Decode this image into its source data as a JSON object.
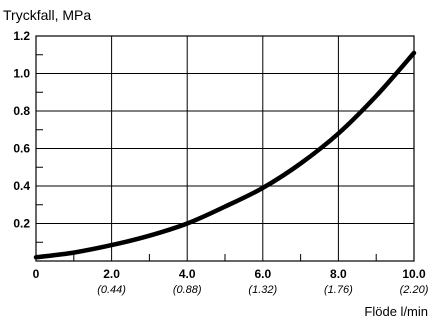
{
  "chart_data": {
    "type": "line",
    "ylabel": "Tryckfall, MPa",
    "xlabel": "Flöde l/min",
    "xlim": [
      0,
      10.0
    ],
    "ylim": [
      0,
      1.2
    ],
    "grid": true,
    "y_ticks": [
      {
        "value": 0.2,
        "label": "0.2"
      },
      {
        "value": 0.4,
        "label": "0.4"
      },
      {
        "value": 0.6,
        "label": "0.6"
      },
      {
        "value": 0.8,
        "label": "0.8"
      },
      {
        "value": 1.0,
        "label": "1.0"
      },
      {
        "value": 1.2,
        "label": "1.2"
      }
    ],
    "x_ticks": [
      {
        "value": 0,
        "label": "0",
        "secondary": ""
      },
      {
        "value": 2.0,
        "label": "2.0",
        "secondary": "(0.44)"
      },
      {
        "value": 4.0,
        "label": "4.0",
        "secondary": "(0.88)"
      },
      {
        "value": 6.0,
        "label": "6.0",
        "secondary": "(1.32)"
      },
      {
        "value": 8.0,
        "label": "8.0",
        "secondary": "(1.76)"
      },
      {
        "value": 10.0,
        "label": "10.0",
        "secondary": "(2.20)"
      }
    ],
    "series": [
      {
        "x": [
          0,
          1.0,
          2.0,
          3.0,
          4.0,
          5.0,
          6.0,
          7.0,
          8.0,
          9.0,
          10.0
        ],
        "y": [
          0.02,
          0.045,
          0.085,
          0.135,
          0.2,
          0.29,
          0.39,
          0.52,
          0.68,
          0.88,
          1.11
        ]
      }
    ]
  }
}
